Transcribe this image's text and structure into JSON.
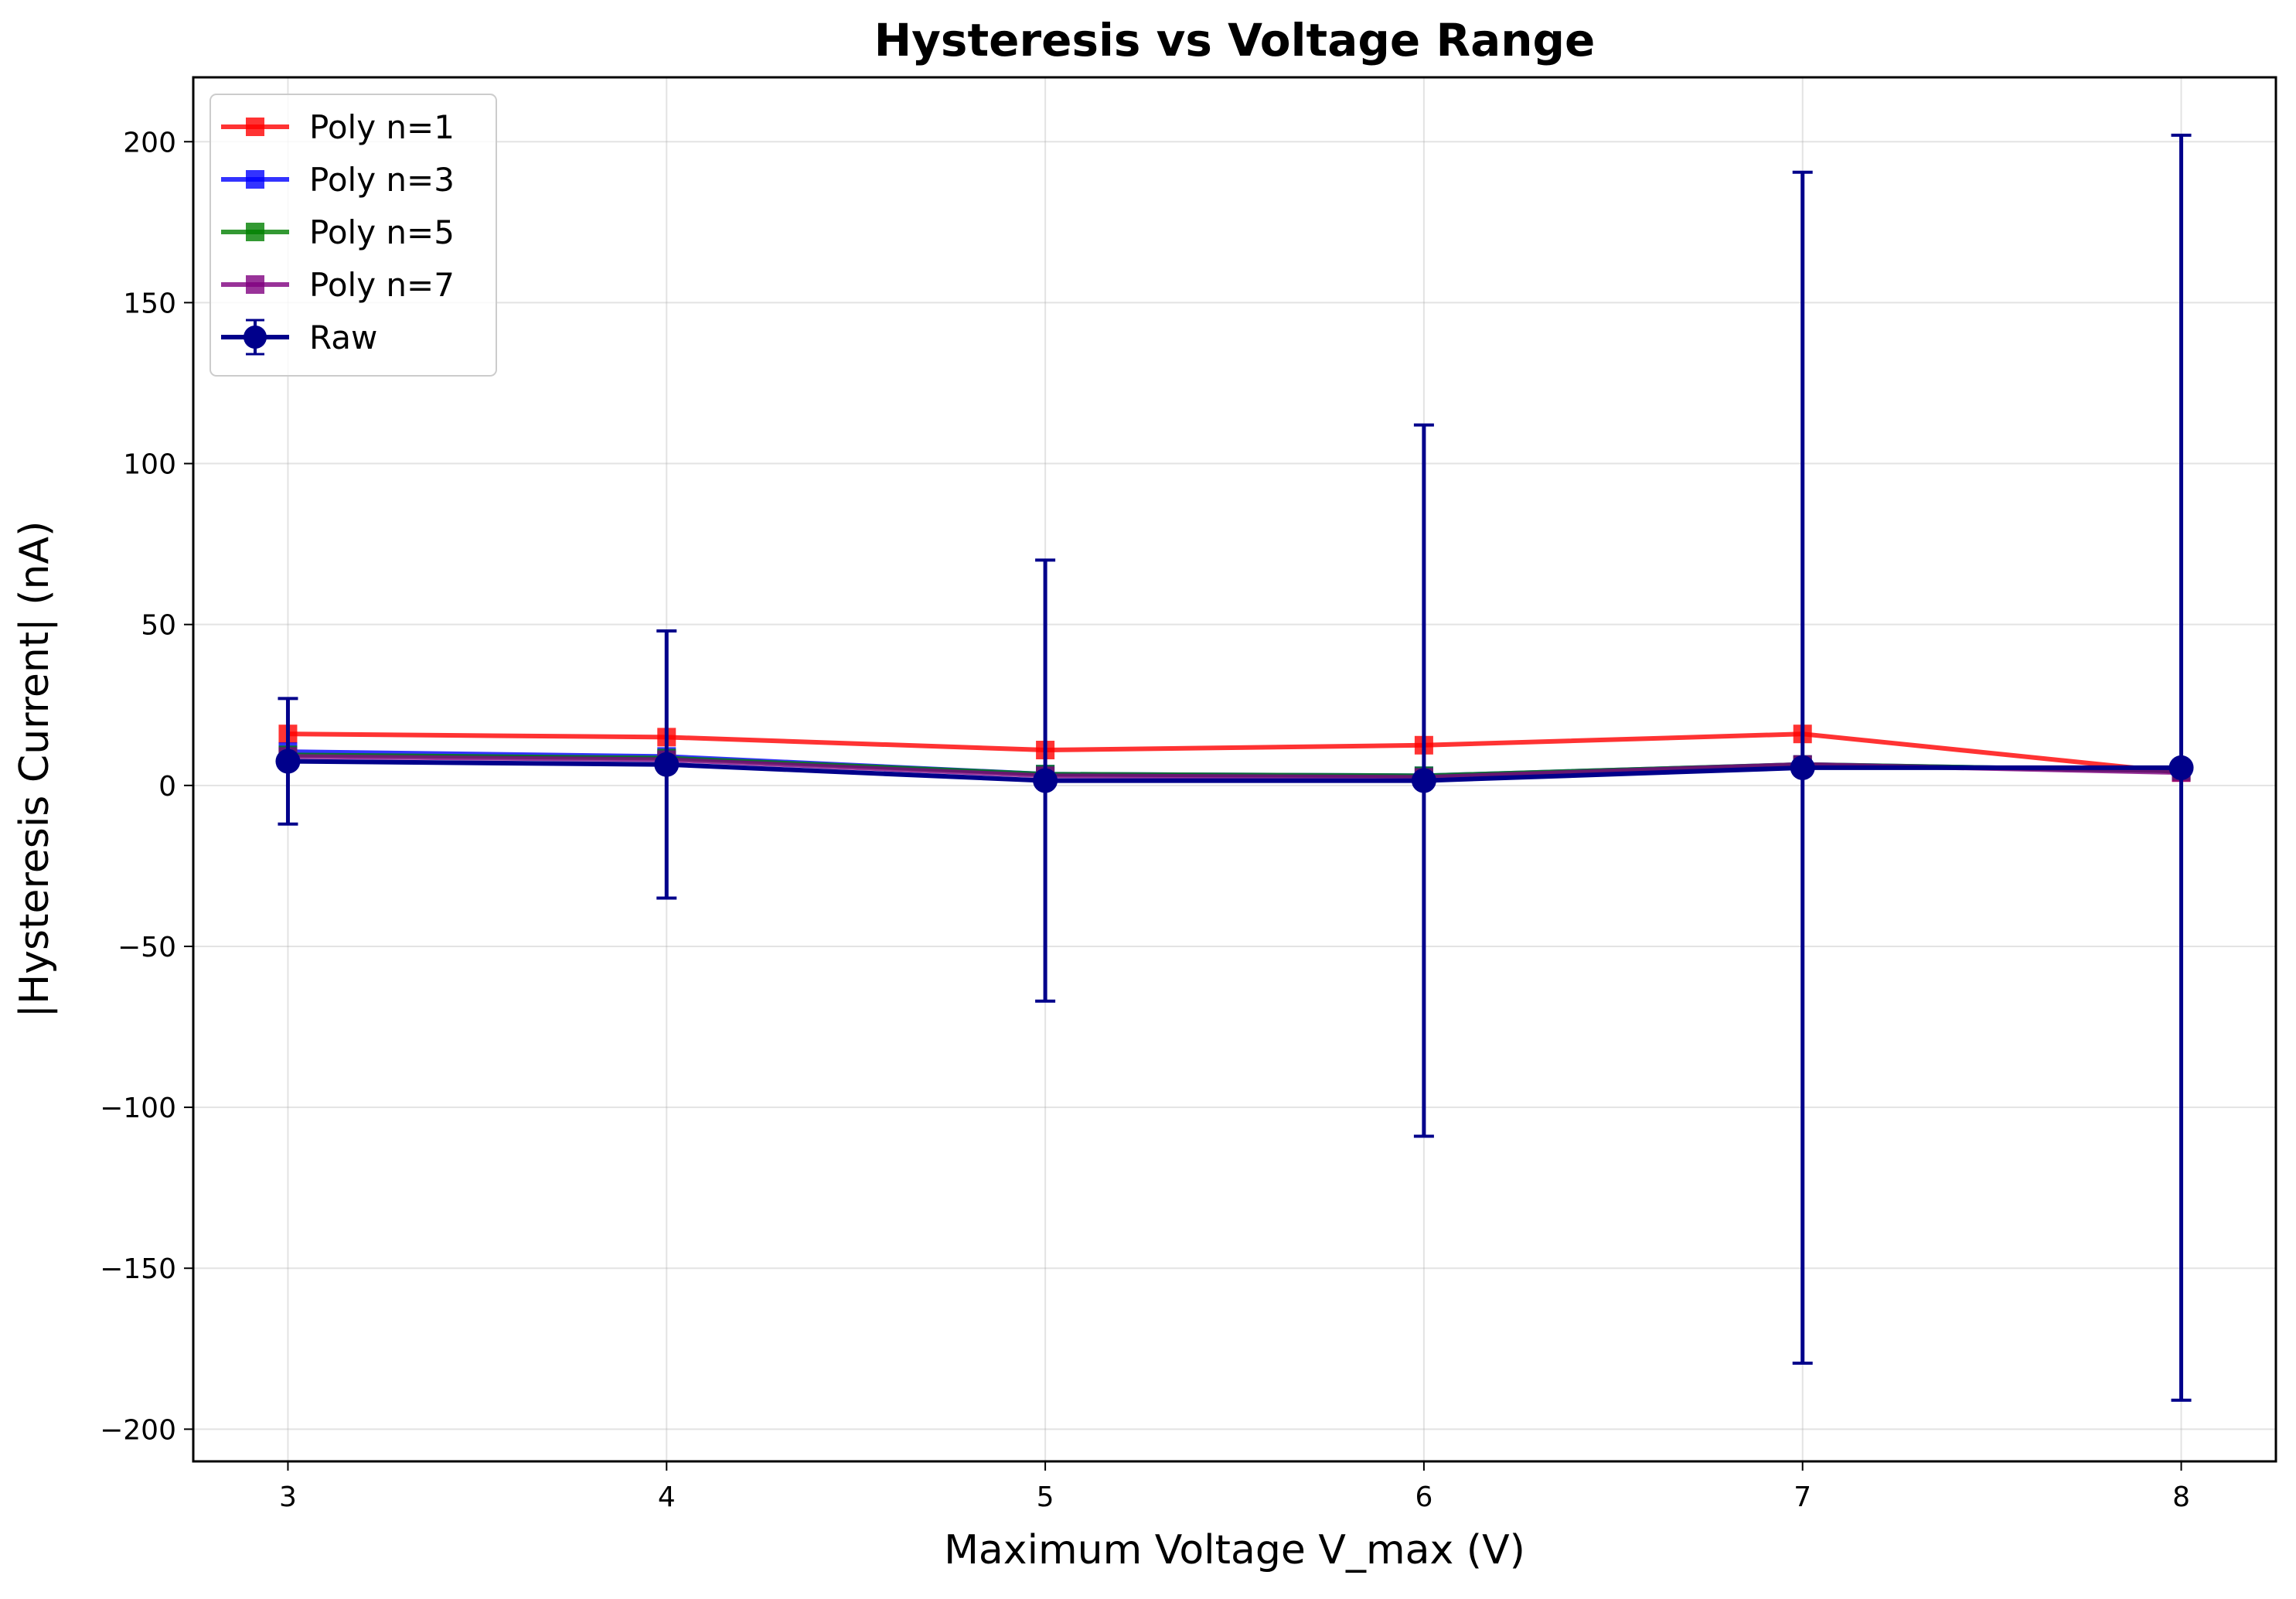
{
  "chart_data": {
    "type": "line",
    "title": "Hysteresis vs Voltage Range",
    "xlabel": "Maximum Voltage V_max (V)",
    "ylabel": "|Hysteresis Current| (nA)",
    "x": [
      3,
      4,
      5,
      6,
      7,
      8
    ],
    "xticks": [
      3,
      4,
      5,
      6,
      7,
      8
    ],
    "yticks": [
      -200,
      -150,
      -100,
      -50,
      0,
      50,
      100,
      150,
      200
    ],
    "xlim": [
      2.75,
      8.25
    ],
    "ylim": [
      -210,
      220
    ],
    "grid": true,
    "legend_position": "top-left",
    "series": [
      {
        "name": "Poly n=1",
        "color": "#ff0000",
        "marker": "square",
        "values": [
          16,
          15,
          11,
          12.5,
          16,
          4
        ]
      },
      {
        "name": "Poly n=3",
        "color": "#0000ff",
        "marker": "square",
        "values": [
          10.5,
          9,
          3.5,
          3,
          6.5,
          4.5
        ]
      },
      {
        "name": "Poly n=5",
        "color": "#008000",
        "marker": "square",
        "values": [
          9.5,
          8.5,
          3.5,
          3,
          6.5,
          4.5
        ]
      },
      {
        "name": "Poly n=7",
        "color": "#800080",
        "marker": "square",
        "values": [
          9,
          8,
          3,
          2.5,
          6.5,
          4
        ]
      },
      {
        "name": "Raw",
        "color": "#00008b",
        "marker": "circle",
        "values": [
          7.5,
          6.5,
          1.5,
          1.5,
          5.5,
          5.5
        ],
        "errors": [
          19.5,
          41.5,
          68.5,
          110.5,
          185,
          196.5
        ]
      }
    ]
  }
}
